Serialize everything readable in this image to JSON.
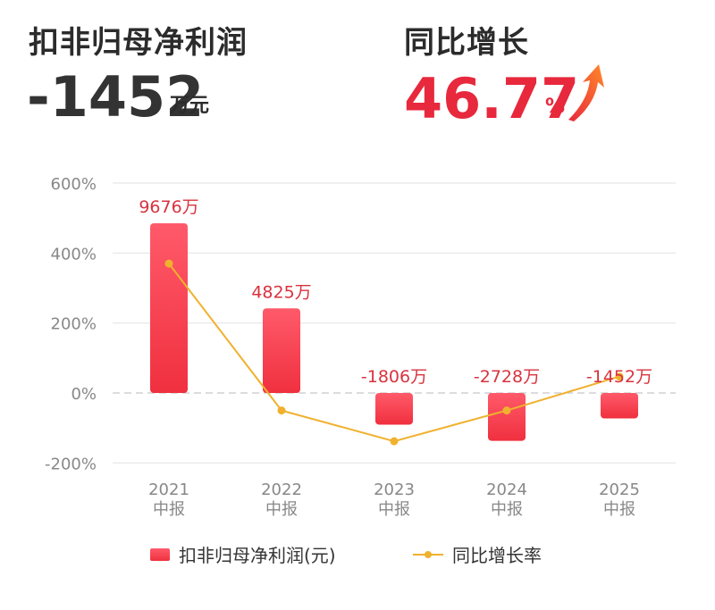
{
  "header": {
    "profit_label": "扣非归母净利润",
    "profit_value": "-1452",
    "profit_unit": "万元",
    "growth_label": "同比增长",
    "growth_value": "46.77",
    "growth_unit": "%",
    "growth_direction_icon": "arrow-up-icon"
  },
  "colors": {
    "bar_top": "#ff5a6a",
    "bar_bottom": "#f0303f",
    "line": "#f0b12e",
    "accent": "#e8283c",
    "axis_text": "#888888",
    "bar_label": "#d8333f",
    "grid": "#e6e6e6"
  },
  "chart_data": {
    "type": "bar",
    "categories": [
      [
        "2021",
        "中报"
      ],
      [
        "2022",
        "中报"
      ],
      [
        "2023",
        "中报"
      ],
      [
        "2024",
        "中报"
      ],
      [
        "2025",
        "中报"
      ]
    ],
    "series": [
      {
        "name": "扣非归母净利润(元)",
        "type": "bar",
        "values": [
          9676,
          4825,
          -1806,
          -2728,
          -1452
        ],
        "labels": [
          "9676万",
          "4825万",
          "-1806万",
          "-2728万",
          "-1452万"
        ]
      },
      {
        "name": "同比增长率",
        "type": "line",
        "values": [
          370,
          -50,
          -138,
          -50,
          47
        ]
      }
    ],
    "yticks": [
      "600%",
      "400%",
      "200%",
      "0%",
      "-200%"
    ],
    "ytick_values": [
      600,
      400,
      200,
      0,
      -200
    ],
    "ylim": [
      -200,
      600
    ],
    "bar_scale_note": "",
    "grid": true,
    "legend_position": "bottom"
  }
}
